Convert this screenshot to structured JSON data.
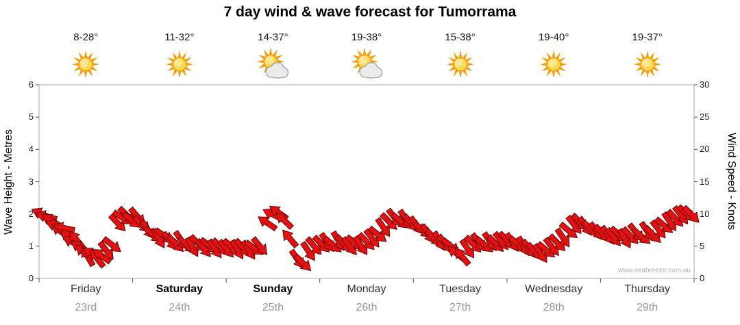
{
  "title": "7 day wind & wave forecast for Tumorrama",
  "watermark": "www.seabreeze.com.au",
  "axes": {
    "left_label": "Wave Height - Metres",
    "right_label": "Wind Speed - Knots",
    "left_ticks": [
      0,
      1,
      2,
      3,
      4,
      5,
      6
    ],
    "right_ticks": [
      0,
      5,
      10,
      15,
      20,
      25,
      30
    ]
  },
  "chart_data": {
    "type": "scatter",
    "subtype": "wind-direction-arrows",
    "title": "7 day wind & wave forecast for Tumorrama",
    "ylabel_left": "Wave Height - Metres",
    "ylim_left": [
      0,
      6
    ],
    "ylabel_right": "Wind Speed - Knots",
    "ylim_right": [
      0,
      30
    ],
    "x_unit": "days",
    "x_range_days": [
      0,
      7
    ],
    "grid": false,
    "days": [
      {
        "name": "Friday",
        "date": "23rd",
        "temp": "8-28°",
        "icon": "sunny",
        "bold": false
      },
      {
        "name": "Saturday",
        "date": "24th",
        "temp": "11-32°",
        "icon": "sunny",
        "bold": true
      },
      {
        "name": "Sunday",
        "date": "25th",
        "temp": "14-37°",
        "icon": "partly-cloudy",
        "bold": true
      },
      {
        "name": "Monday",
        "date": "26th",
        "temp": "19-38°",
        "icon": "partly-cloudy",
        "bold": false
      },
      {
        "name": "Tuesday",
        "date": "27th",
        "temp": "15-38°",
        "icon": "sunny",
        "bold": false
      },
      {
        "name": "Wednesday",
        "date": "28th",
        "temp": "19-40°",
        "icon": "sunny",
        "bold": false
      },
      {
        "name": "Thursday",
        "date": "29th",
        "temp": "19-37°",
        "icon": "sunny",
        "bold": false
      }
    ],
    "points_format": [
      "day_fraction",
      "wind_knots",
      "arrow_angle_deg"
    ],
    "points": [
      [
        0.03,
        10.0,
        205
      ],
      [
        0.08,
        9.6,
        195
      ],
      [
        0.13,
        9.0,
        212
      ],
      [
        0.18,
        8.2,
        200
      ],
      [
        0.23,
        7.3,
        218
      ],
      [
        0.27,
        7.8,
        192
      ],
      [
        0.32,
        6.4,
        222
      ],
      [
        0.36,
        5.6,
        208
      ],
      [
        0.4,
        6.0,
        230
      ],
      [
        0.44,
        4.8,
        214
      ],
      [
        0.48,
        4.0,
        226
      ],
      [
        0.52,
        3.4,
        240
      ],
      [
        0.57,
        3.8,
        210
      ],
      [
        0.62,
        3.1,
        232
      ],
      [
        0.67,
        3.5,
        216
      ],
      [
        0.72,
        4.3,
        52
      ],
      [
        0.78,
        5.2,
        38
      ],
      [
        0.84,
        8.6,
        46
      ],
      [
        0.89,
        9.4,
        34
      ],
      [
        0.94,
        9.8,
        44
      ],
      [
        0.99,
        9.0,
        40
      ],
      [
        1.05,
        9.6,
        50
      ],
      [
        1.1,
        8.4,
        44
      ],
      [
        1.16,
        7.6,
        56
      ],
      [
        1.22,
        6.8,
        40
      ],
      [
        1.28,
        6.2,
        60
      ],
      [
        1.34,
        6.6,
        34
      ],
      [
        1.4,
        5.8,
        52
      ],
      [
        1.46,
        5.4,
        46
      ],
      [
        1.52,
        5.9,
        56
      ],
      [
        1.58,
        5.2,
        40
      ],
      [
        1.64,
        4.9,
        62
      ],
      [
        1.7,
        5.4,
        46
      ],
      [
        1.76,
        4.7,
        52
      ],
      [
        1.82,
        5.1,
        36
      ],
      [
        1.88,
        4.6,
        56
      ],
      [
        1.94,
        4.9,
        44
      ],
      [
        2.0,
        4.6,
        50
      ],
      [
        2.06,
        4.9,
        40
      ],
      [
        2.12,
        4.5,
        60
      ],
      [
        2.18,
        4.8,
        46
      ],
      [
        2.24,
        4.4,
        56
      ],
      [
        2.3,
        4.7,
        36
      ],
      [
        2.36,
        5.0,
        50
      ],
      [
        2.44,
        8.6,
        214
      ],
      [
        2.5,
        9.9,
        206
      ],
      [
        2.56,
        10.2,
        216
      ],
      [
        2.62,
        9.0,
        224
      ],
      [
        2.68,
        6.2,
        230
      ],
      [
        2.76,
        3.0,
        56
      ],
      [
        2.82,
        2.4,
        44
      ],
      [
        2.88,
        4.2,
        56
      ],
      [
        2.94,
        5.0,
        50
      ],
      [
        3.02,
        5.3,
        46
      ],
      [
        3.08,
        5.6,
        56
      ],
      [
        3.14,
        5.2,
        40
      ],
      [
        3.2,
        5.8,
        60
      ],
      [
        3.26,
        5.4,
        46
      ],
      [
        3.32,
        5.0,
        52
      ],
      [
        3.38,
        5.5,
        36
      ],
      [
        3.44,
        5.1,
        56
      ],
      [
        3.5,
        5.7,
        46
      ],
      [
        3.56,
        6.2,
        52
      ],
      [
        3.62,
        6.8,
        40
      ],
      [
        3.68,
        7.9,
        56
      ],
      [
        3.74,
        8.8,
        46
      ],
      [
        3.8,
        9.4,
        52
      ],
      [
        3.86,
        8.9,
        40
      ],
      [
        3.92,
        9.2,
        56
      ],
      [
        3.98,
        8.6,
        46
      ],
      [
        4.04,
        8.2,
        52
      ],
      [
        4.1,
        7.5,
        40
      ],
      [
        4.16,
        6.9,
        56
      ],
      [
        4.22,
        6.3,
        46
      ],
      [
        4.28,
        5.8,
        60
      ],
      [
        4.34,
        5.4,
        52
      ],
      [
        4.4,
        5.0,
        40
      ],
      [
        4.46,
        3.9,
        218
      ],
      [
        4.52,
        3.4,
        230
      ],
      [
        4.58,
        4.6,
        56
      ],
      [
        4.64,
        5.3,
        46
      ],
      [
        4.7,
        5.6,
        52
      ],
      [
        4.76,
        5.2,
        40
      ],
      [
        4.82,
        5.7,
        56
      ],
      [
        4.88,
        5.4,
        46
      ],
      [
        4.94,
        5.8,
        52
      ],
      [
        5.0,
        5.9,
        46
      ],
      [
        5.06,
        5.6,
        56
      ],
      [
        5.12,
        5.3,
        40
      ],
      [
        5.18,
        5.0,
        60
      ],
      [
        5.24,
        4.6,
        52
      ],
      [
        5.3,
        4.2,
        46
      ],
      [
        5.36,
        3.9,
        56
      ],
      [
        5.42,
        4.4,
        40
      ],
      [
        5.48,
        4.9,
        52
      ],
      [
        5.54,
        5.5,
        46
      ],
      [
        5.6,
        6.3,
        56
      ],
      [
        5.66,
        7.4,
        40
      ],
      [
        5.72,
        8.3,
        52
      ],
      [
        5.78,
        8.7,
        46
      ],
      [
        5.84,
        8.1,
        56
      ],
      [
        5.9,
        7.7,
        40
      ],
      [
        5.96,
        7.3,
        52
      ],
      [
        6.02,
        7.0,
        46
      ],
      [
        6.08,
        6.7,
        56
      ],
      [
        6.14,
        6.4,
        52
      ],
      [
        6.2,
        6.8,
        40
      ],
      [
        6.26,
        6.2,
        60
      ],
      [
        6.32,
        6.6,
        46
      ],
      [
        6.38,
        7.1,
        52
      ],
      [
        6.44,
        6.5,
        40
      ],
      [
        6.5,
        7.3,
        56
      ],
      [
        6.56,
        6.8,
        46
      ],
      [
        6.62,
        7.6,
        52
      ],
      [
        6.68,
        8.2,
        40
      ],
      [
        6.74,
        8.8,
        56
      ],
      [
        6.8,
        9.3,
        46
      ],
      [
        6.86,
        9.8,
        52
      ],
      [
        6.92,
        10.1,
        40
      ],
      [
        6.97,
        9.9,
        46
      ]
    ],
    "colors": {
      "arrow_fill": "#e31212",
      "arrow_stroke": "#6e0000",
      "axis_box": "#a9a9a9",
      "tick": "#555555",
      "sun_core": "#ffd94d",
      "sun_ray": "#f59b00",
      "sun_stroke": "#ef8e00",
      "cloud_fill": "#ebebeb",
      "cloud_edge": "#a6a6a6"
    }
  }
}
